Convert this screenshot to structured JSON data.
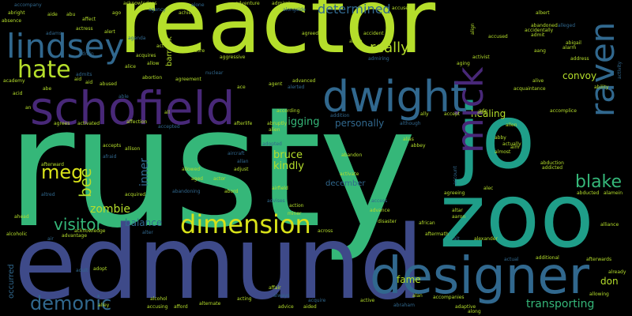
{
  "colors": {
    "background": "#000000",
    "lime": "#b5de2b",
    "green": "#35b779",
    "teal": "#1f9e89",
    "blue": "#3e4a89",
    "purple": "#482878",
    "cyan": "#26828e",
    "steel": "#31688e",
    "yellow": "#d8e219"
  },
  "words": {
    "rusty": "rusty",
    "reactor": "reactor",
    "edmund": "edmund",
    "jo": "jo",
    "zoo": "zoo",
    "designer": "designer",
    "schofield": "schofield",
    "dwight": "dwight",
    "lindsey": "lindsey",
    "raven": "raven",
    "mick": "mick",
    "hate": "hate",
    "dimension": "dimension",
    "blake": "blake",
    "demonic": "demonic",
    "meg": "meg",
    "bee": "bee",
    "really": "really",
    "determined": "determined",
    "visitor": "visitor",
    "healing": "healing",
    "transporting": "transporting",
    "digging": "digging",
    "personally": "personally",
    "bruce": "bruce",
    "kindly": "kindly",
    "zombie": "zombie",
    "balance": "balance",
    "inner": "inner",
    "barrack": "barrack",
    "convoy": "convoy",
    "fame": "fame",
    "don": "don",
    "december": "december",
    "occurred": "occurred",
    "ability": "ability",
    "ado": "ado",
    "abigail": "abigail",
    "accompany": "accompany",
    "abraham": "abraham",
    "adopted": "adopted",
    "alliance": "alliance",
    "afterwards": "afterwards",
    "advance": "advance",
    "altar": "altar",
    "already": "already",
    "adopt": "adopt",
    "accept": "accept",
    "aid": "aid",
    "alley": "alley",
    "afford": "afford",
    "adaptive": "adaptive",
    "alternate": "alternate",
    "along": "along",
    "acting": "acting",
    "active": "active",
    "additional": "additional",
    "alexander": "alexander",
    "accompanies": "accompanies",
    "aftermath": "aftermath",
    "african": "african",
    "aaron": "aaron",
    "actual": "actual",
    "alcohol": "alcohol",
    "accusing": "accusing",
    "alcoholic": "alcoholic",
    "advantage": "advantage",
    "acknowledge": "acknowledge",
    "ahead": "ahead",
    "altred": "altred",
    "afterward": "afterward",
    "afraid": "afraid",
    "accepts": "accepts",
    "agrees": "agrees",
    "activated": "activated",
    "affection": "affection",
    "accepted": "accepted",
    "allison": "allison",
    "acquired": "acquired",
    "abandoning": "abandoning",
    "allowed": "allowed",
    "aged": "aged",
    "actor": "actor",
    "aircraft": "aircraft",
    "airfield": "airfield",
    "abord": "abord",
    "adjust": "adjust",
    "allan": "allan",
    "activate": "activate",
    "abandon": "abandon",
    "alias": "alias",
    "abbey": "abbey",
    "ally": "ally",
    "addition": "addition",
    "aid2": "aid",
    "aide": "aide",
    "abu": "abu",
    "affect": "affect",
    "ago": "ago",
    "achieve": "achieve",
    "alert": "alert",
    "alice": "alice",
    "allow": "allow",
    "acquires": "acquires",
    "abused": "abused",
    "abortion": "abortion",
    "agreement": "agreement",
    "aggressive": "aggressive",
    "ace": "ace",
    "agent": "agent",
    "alerted": "alerted",
    "advanced": "advanced",
    "according": "according",
    "abruptly": "abruptly",
    "afterlife": "afterlife",
    "alien": "alien",
    "admiral": "admiral",
    "alongside": "alongside",
    "adventure": "adventure",
    "alone": "alone",
    "acknowledges": "acknowledges",
    "absence": "absence",
    "abright": "abright",
    "actress": "actress",
    "academy": "academy",
    "acid": "acid",
    "abe": "abe",
    "accuses": "accuses",
    "accident": "accident",
    "alpha": "alpha",
    "agreed": "agreed",
    "admiring": "admiring",
    "abandoned": "abandoned",
    "accidentally": "accidentally",
    "admit": "admit",
    "accused": "accused",
    "activist": "activist",
    "albert": "albert",
    "alarm": "alarm",
    "address": "address",
    "acquaintance": "acquaintance",
    "alive": "alive",
    "accomplice": "accomplice",
    "adult": "adult",
    "abby": "abby",
    "abduction": "abduction",
    "addicted": "addicted",
    "abducted": "abducted",
    "alamein": "alamein",
    "alec": "alec",
    "account": "account",
    "almost": "almost",
    "aim": "aim",
    "allen": "allen",
    "actually": "actually",
    "agreeing": "agreeing",
    "access": "access",
    "disaster": "disaster",
    "advises": "advises",
    "miner": "miner",
    "action": "action",
    "always": "always",
    "across": "across",
    "acquire": "acquire",
    "aided": "aided",
    "advice": "advice",
    "affair": "affair",
    "alan": "alan",
    "alter": "alter",
    "agency": "agency",
    "agenda": "agenda",
    "adore": "adore",
    "although": "although",
    "allowing": "allowing",
    "admits": "admits",
    "adams": "adams",
    "aging": "aging",
    "align": "align",
    "aang": "aang",
    "alleged": "alleged",
    "admin": "admin",
    "activity": "activity",
    "nuclear": "nuclear",
    "add": "add",
    "act": "act",
    "all": "all",
    "able": "able",
    "air": "air",
    "alt": "alt",
    "an": "an"
  }
}
